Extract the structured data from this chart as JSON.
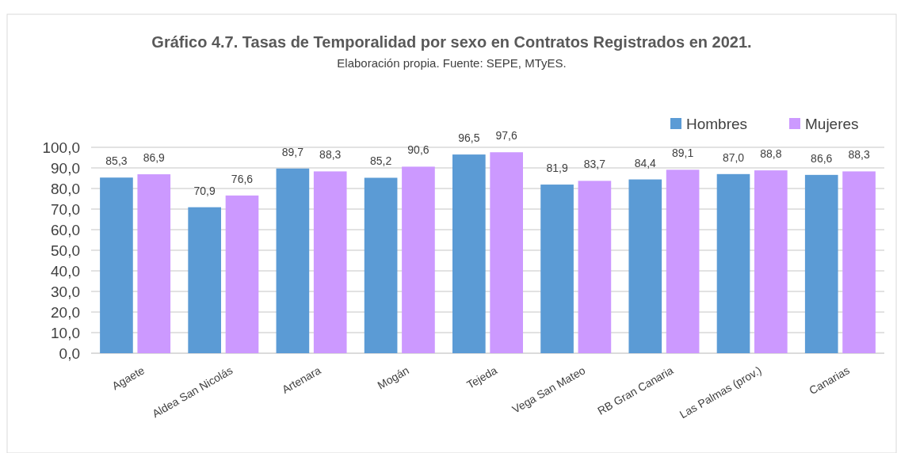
{
  "chart_data": {
    "type": "bar",
    "title": "Gráfico 4.7. Tasas de Temporalidad por sexo en Contratos Registrados en 2021.",
    "subtitle": "Elaboración propia. Fuente: SEPE, MTyES.",
    "categories": [
      "Agaete",
      "Aldea San Nicolás",
      "Artenara",
      "Mogán",
      "Tejeda",
      "Vega San Mateo",
      "RB Gran Canaria",
      "Las Palmas (prov.)",
      "Canarias"
    ],
    "series": [
      {
        "name": "Hombres",
        "color": "#5b9bd5",
        "values": [
          85.3,
          70.9,
          89.7,
          85.2,
          96.5,
          81.9,
          84.4,
          87.0,
          86.6
        ],
        "value_labels": [
          "85,3",
          "70,9",
          "89,7",
          "85,2",
          "96,5",
          "81,9",
          "84,4",
          "87,0",
          "86,6"
        ]
      },
      {
        "name": "Mujeres",
        "color": "#cc99ff",
        "values": [
          86.9,
          76.6,
          88.3,
          90.6,
          97.6,
          83.7,
          89.1,
          88.8,
          88.3
        ],
        "value_labels": [
          "86,9",
          "76,6",
          "88,3",
          "90,6",
          "97,6",
          "83,7",
          "89,1",
          "88,8",
          "88,3"
        ]
      }
    ],
    "ylim": [
      0,
      100
    ],
    "yticks": [
      {
        "value": 0,
        "label": "0,0"
      },
      {
        "value": 10,
        "label": "10,0"
      },
      {
        "value": 20,
        "label": "20,0"
      },
      {
        "value": 30,
        "label": "30,0"
      },
      {
        "value": 40,
        "label": "40,0"
      },
      {
        "value": 50,
        "label": "50,0"
      },
      {
        "value": 60,
        "label": "60,0"
      },
      {
        "value": 70,
        "label": "70,0"
      },
      {
        "value": 80,
        "label": "80,0"
      },
      {
        "value": 90,
        "label": "90,0"
      },
      {
        "value": 100,
        "label": "100,0"
      }
    ],
    "grid": "y",
    "legend": "top right"
  }
}
